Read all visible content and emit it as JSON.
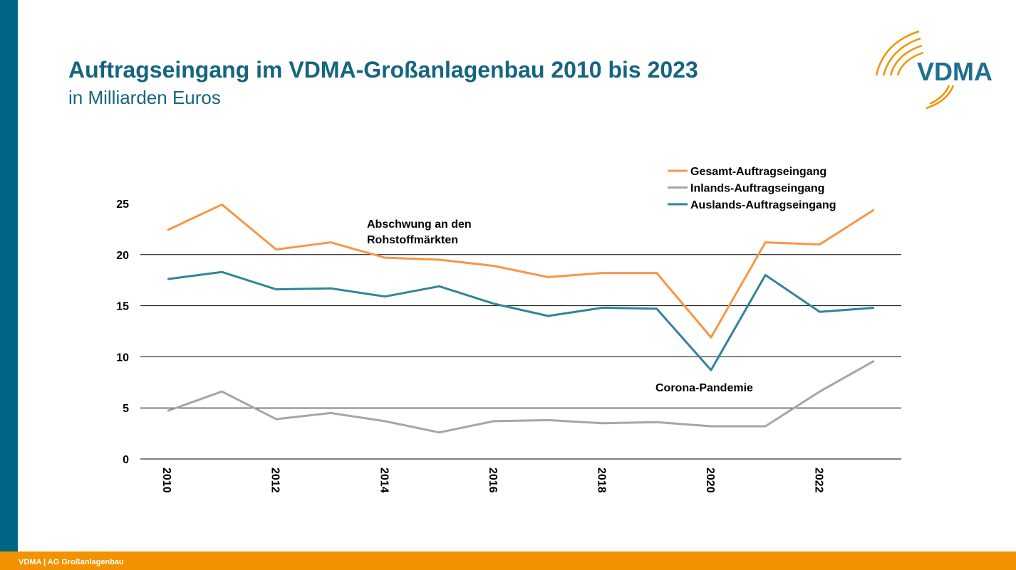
{
  "chart_data": {
    "type": "line",
    "title": "Auftragseingang im VDMA-Großanlagenbau 2010 bis 2023",
    "subtitle": "in Milliarden Euros",
    "x": [
      2010,
      2011,
      2012,
      2013,
      2014,
      2015,
      2016,
      2017,
      2018,
      2019,
      2020,
      2021,
      2022,
      2023
    ],
    "xlim": [
      2009.5,
      2023.5
    ],
    "xticks": [
      2010,
      2012,
      2014,
      2016,
      2018,
      2020,
      2022
    ],
    "ylim": [
      0,
      25
    ],
    "yticks": [
      0,
      5,
      10,
      15,
      20,
      25
    ],
    "grid": true,
    "legend": "top-right",
    "series": [
      {
        "name": "Gesamt-Auftragseingang",
        "color": "#f79646",
        "values": [
          22.4,
          24.9,
          20.5,
          21.2,
          19.7,
          19.5,
          18.9,
          17.8,
          18.2,
          18.2,
          11.9,
          21.2,
          21.0,
          24.4
        ]
      },
      {
        "name": "Inlands-Auftragseingang",
        "color": "#a6a6a6",
        "values": [
          4.7,
          6.6,
          3.9,
          4.5,
          3.7,
          2.6,
          3.7,
          3.8,
          3.5,
          3.6,
          3.2,
          3.2,
          6.6,
          9.6
        ]
      },
      {
        "name": "Auslands-Auftragseingang",
        "color": "#31849b",
        "values": [
          17.6,
          18.3,
          16.6,
          16.7,
          15.9,
          16.9,
          15.2,
          14.0,
          14.8,
          14.7,
          8.7,
          18.0,
          14.4,
          14.8
        ]
      }
    ],
    "annotations": [
      [
        "Abschwung an den",
        "Rohstoffmärkten"
      ],
      [
        "Corona-Pandemie"
      ]
    ]
  },
  "logo": "VDMA",
  "footer": "VDMA | AG Großanlagenbau"
}
